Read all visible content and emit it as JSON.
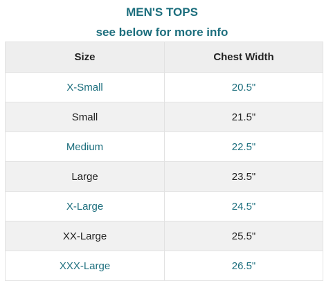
{
  "header": {
    "title": "MEN'S TOPS",
    "subtitle": "see below for more info"
  },
  "table": {
    "columns": [
      "Size",
      "Chest Width"
    ],
    "rows": [
      {
        "size": "X-Small",
        "chest": "20.5\""
      },
      {
        "size": "Small",
        "chest": "21.5\""
      },
      {
        "size": "Medium",
        "chest": "22.5\""
      },
      {
        "size": "Large",
        "chest": "23.5\""
      },
      {
        "size": "X-Large",
        "chest": "24.5\""
      },
      {
        "size": "XX-Large",
        "chest": "25.5\""
      },
      {
        "size": "XXX-Large",
        "chest": "26.5\""
      }
    ]
  },
  "colors": {
    "accent": "#1c6e7d",
    "header_bg": "#eeeeee",
    "stripe_bg": "#f1f1f1",
    "text": "#222222"
  }
}
